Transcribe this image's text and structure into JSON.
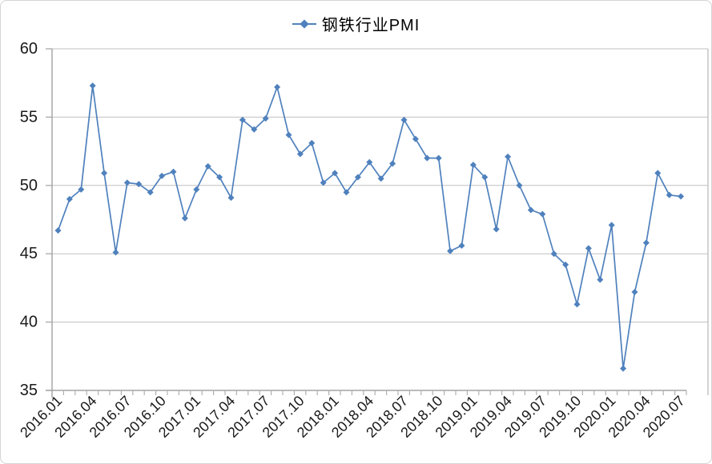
{
  "chart_data": {
    "type": "line",
    "title": "钢铁行业PMI",
    "x": [
      "2016.01",
      "2016.02",
      "2016.03",
      "2016.04",
      "2016.05",
      "2016.06",
      "2016.07",
      "2016.08",
      "2016.09",
      "2016.10",
      "2016.11",
      "2016.12",
      "2017.01",
      "2017.02",
      "2017.03",
      "2017.04",
      "2017.05",
      "2017.06",
      "2017.07",
      "2017.08",
      "2017.09",
      "2017.10",
      "2017.11",
      "2017.12",
      "2018.01",
      "2018.02",
      "2018.03",
      "2018.04",
      "2018.05",
      "2018.06",
      "2018.07",
      "2018.08",
      "2018.09",
      "2018.10",
      "2018.11",
      "2018.12",
      "2019.01",
      "2019.02",
      "2019.03",
      "2019.04",
      "2019.05",
      "2019.06",
      "2019.07",
      "2019.08",
      "2019.09",
      "2019.10",
      "2019.11",
      "2019.12",
      "2020.01",
      "2020.02",
      "2020.03",
      "2020.04",
      "2020.05",
      "2020.06",
      "2020.07"
    ],
    "series": [
      {
        "name": "钢铁行业PMI",
        "values": [
          46.7,
          49.0,
          49.7,
          57.3,
          50.9,
          45.1,
          50.2,
          50.1,
          49.5,
          50.7,
          51.0,
          47.6,
          49.7,
          51.4,
          50.6,
          49.1,
          54.8,
          54.1,
          54.9,
          57.2,
          53.7,
          52.3,
          53.1,
          50.2,
          50.9,
          49.5,
          50.6,
          51.7,
          50.5,
          51.6,
          54.8,
          53.4,
          52.0,
          52.0,
          45.2,
          45.6,
          51.5,
          50.6,
          46.8,
          52.1,
          50.0,
          48.2,
          47.9,
          45.0,
          44.2,
          41.3,
          45.4,
          43.1,
          47.1,
          36.6,
          42.2,
          45.8,
          50.9,
          49.3,
          49.2
        ]
      }
    ],
    "x_tick_labels": [
      "2016.01",
      "2016.04",
      "2016.07",
      "2016.10",
      "2017.01",
      "2017.04",
      "2017.07",
      "2017.10",
      "2018.01",
      "2018.04",
      "2018.07",
      "2018.10",
      "2019.01",
      "2019.04",
      "2019.07",
      "2019.10",
      "2020.01",
      "2020.04",
      "2020.07"
    ],
    "x_label_every": 3,
    "y_tick_labels": [
      "60",
      "55",
      "50",
      "45",
      "40",
      "35"
    ],
    "ylim": [
      35,
      60
    ],
    "ytick_step": 5,
    "grid": "horizontal",
    "legend_position": "top-center",
    "marker": "diamond"
  },
  "legend": {
    "label": "钢铁行业PMI"
  },
  "colors": {
    "line": "#4F81BD",
    "grid": "#c0c0c0",
    "axis": "#a3a3a3",
    "tick": "#b0b0b0",
    "text": "#1a1a1a",
    "background": "#ffffff",
    "border": "#d4d4d4"
  }
}
